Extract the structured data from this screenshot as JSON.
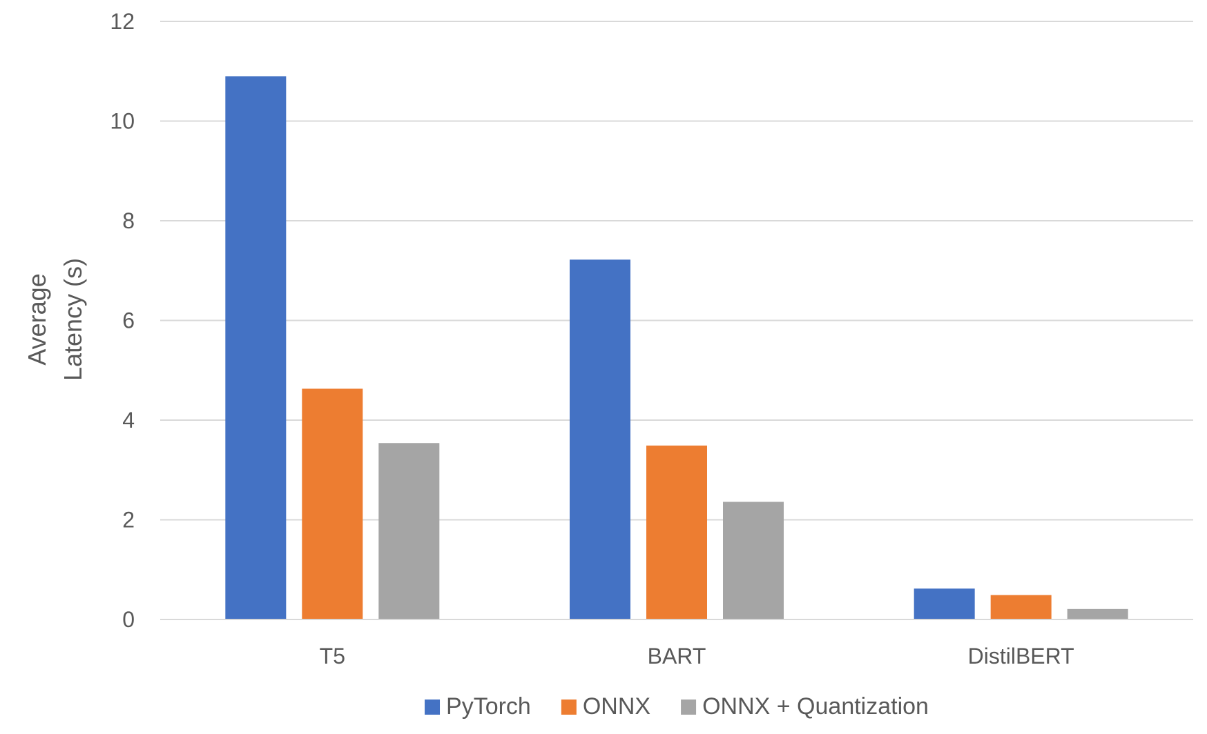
{
  "chart_data": {
    "type": "bar",
    "title": "",
    "xlabel": "",
    "ylabel_lines": [
      "Average",
      "Latency (s)"
    ],
    "ylim": [
      0,
      12
    ],
    "yticks": [
      0,
      2,
      4,
      6,
      8,
      10,
      12
    ],
    "grid": true,
    "legend_position": "bottom",
    "categories": [
      "T5",
      "BART",
      "DistilBERT"
    ],
    "series": [
      {
        "name": "PyTorch",
        "color": "#4472C4",
        "values": [
          10.9,
          7.22,
          0.62
        ]
      },
      {
        "name": "ONNX",
        "color": "#ED7D31",
        "values": [
          4.63,
          3.49,
          0.49
        ]
      },
      {
        "name": "ONNX + Quantization",
        "color": "#A5A5A5",
        "values": [
          3.54,
          2.36,
          0.21
        ]
      }
    ]
  }
}
